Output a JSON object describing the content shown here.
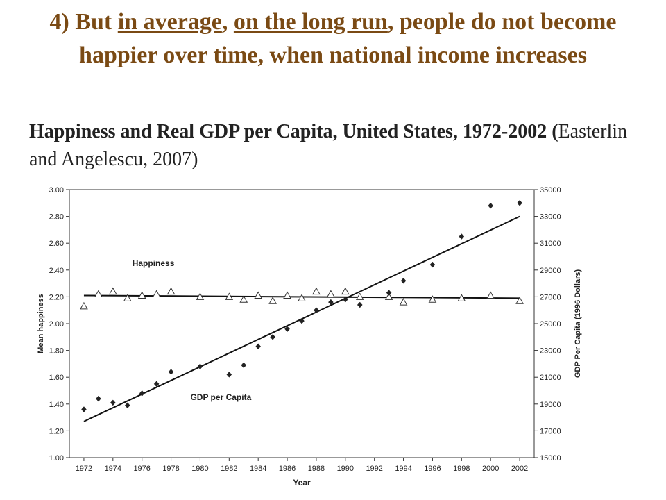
{
  "slide": {
    "title_prefix": "4) But ",
    "title_u1": "in average",
    "title_mid": ", ",
    "title_u2": "on the long run",
    "title_suffix": ", people do not become happier over time, when national income increases",
    "subtitle_bold": "Happiness and Real GDP per Capita, United States, 1972-2002 (",
    "subtitle_rest": "Easterlin and Angelescu, 2007)"
  },
  "chart_data": {
    "type": "scatter",
    "xlabel": "Year",
    "ylabel_left": "Mean happiness",
    "ylabel_right": "GDP Per Capita (1996 Dollars)",
    "x_ticks": [
      1972,
      1974,
      1976,
      1978,
      1980,
      1982,
      1984,
      1986,
      1988,
      1990,
      1992,
      1994,
      1996,
      1998,
      2000,
      2002
    ],
    "y_left_ticks": [
      "1.00",
      "1.20",
      "1.40",
      "1.60",
      "1.80",
      "2.00",
      "2.20",
      "2.40",
      "2.60",
      "2.80",
      "3.00"
    ],
    "y_right_ticks": [
      "15000",
      "17000",
      "19000",
      "21000",
      "23000",
      "25000",
      "27000",
      "29000",
      "31000",
      "33000",
      "35000"
    ],
    "xlim": [
      1971,
      2003
    ],
    "ylim_left": [
      1.0,
      3.0
    ],
    "ylim_right": [
      15000,
      35000
    ],
    "annotations": [
      {
        "text": "Happiness",
        "x": 1976,
        "y": 2.45
      },
      {
        "text": "GDP per Capita",
        "x": 1980,
        "y": 1.45
      }
    ],
    "series": [
      {
        "name": "Happiness",
        "marker": "triangle",
        "axis": "left",
        "x": [
          1972,
          1973,
          1974,
          1975,
          1976,
          1977,
          1978,
          1980,
          1982,
          1983,
          1984,
          1985,
          1986,
          1987,
          1988,
          1989,
          1990,
          1991,
          1993,
          1994,
          1996,
          1998,
          2000,
          2002
        ],
        "y": [
          2.13,
          2.22,
          2.24,
          2.19,
          2.21,
          2.22,
          2.24,
          2.2,
          2.2,
          2.18,
          2.21,
          2.17,
          2.21,
          2.19,
          2.24,
          2.22,
          2.24,
          2.2,
          2.2,
          2.16,
          2.18,
          2.19,
          2.21,
          2.17
        ]
      },
      {
        "name": "GDP per Capita",
        "marker": "diamond",
        "axis": "right",
        "x": [
          1972,
          1973,
          1974,
          1975,
          1976,
          1977,
          1978,
          1980,
          1982,
          1983,
          1984,
          1985,
          1986,
          1987,
          1988,
          1989,
          1990,
          1991,
          1993,
          1994,
          1996,
          1998,
          2000,
          2002
        ],
        "y": [
          18600,
          19400,
          19100,
          18900,
          19800,
          20500,
          21400,
          21800,
          21200,
          21900,
          23300,
          24000,
          24600,
          25200,
          26000,
          26600,
          26800,
          26400,
          27300,
          28200,
          29400,
          31500,
          33800,
          34000
        ]
      }
    ],
    "trend_lines": [
      {
        "series": "Happiness",
        "axis": "left",
        "x": [
          1972,
          2002
        ],
        "y": [
          2.21,
          2.19
        ]
      },
      {
        "series": "GDP per Capita",
        "axis": "right",
        "x": [
          1972,
          2002
        ],
        "y": [
          17700,
          33000
        ]
      }
    ]
  }
}
